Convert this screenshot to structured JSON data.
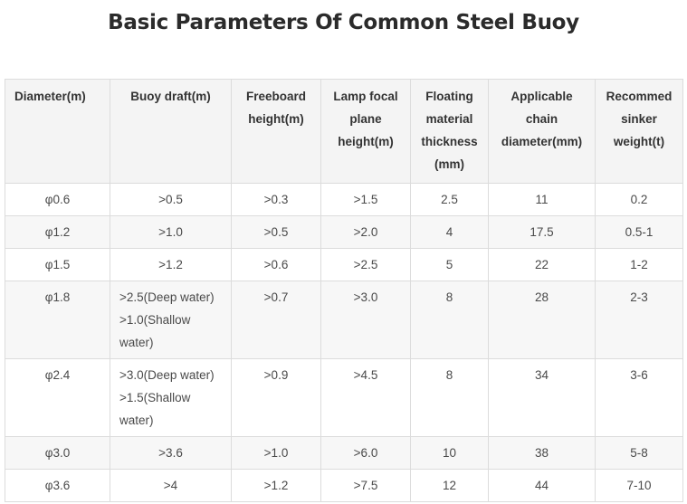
{
  "title": "Basic Parameters Of Common Steel Buoy",
  "headers": [
    "Diameter(m)",
    "Buoy draft(m)",
    "Freeboard height(m)",
    "Lamp focal plane height(m)",
    "Floating material thickness (mm)",
    "Applicable chain diameter(mm)",
    "Recommed sinker weight(t)"
  ],
  "rows": [
    {
      "diameter": "φ0.6",
      "draft": ">0.5",
      "freeboard": ">0.3",
      "lamp": ">1.5",
      "thickness": "2.5",
      "chain": "11",
      "sinker": "0.2"
    },
    {
      "diameter": "φ1.2",
      "draft": ">1.0",
      "freeboard": ">0.5",
      "lamp": ">2.0",
      "thickness": "4",
      "chain": "17.5",
      "sinker": "0.5-1"
    },
    {
      "diameter": "φ1.5",
      "draft": ">1.2",
      "freeboard": ">0.6",
      "lamp": ">2.5",
      "thickness": "5",
      "chain": "22",
      "sinker": "1-2"
    },
    {
      "diameter": "φ1.8",
      "draft": ">2.5(Deep water) >1.0(Shallow water)",
      "freeboard": ">0.7",
      "lamp": ">3.0",
      "thickness": "8",
      "chain": "28",
      "sinker": "2-3"
    },
    {
      "diameter": "φ2.4",
      "draft": ">3.0(Deep water) >1.5(Shallow water)",
      "freeboard": ">0.9",
      "lamp": ">4.5",
      "thickness": "8",
      "chain": "34",
      "sinker": "3-6"
    },
    {
      "diameter": "φ3.0",
      "draft": ">3.6",
      "freeboard": ">1.0",
      "lamp": ">6.0",
      "thickness": "10",
      "chain": "38",
      "sinker": "5-8"
    },
    {
      "diameter": "φ3.6",
      "draft": ">4",
      "freeboard": ">1.2",
      "lamp": ">7.5",
      "thickness": "12",
      "chain": "44",
      "sinker": "7-10"
    }
  ]
}
